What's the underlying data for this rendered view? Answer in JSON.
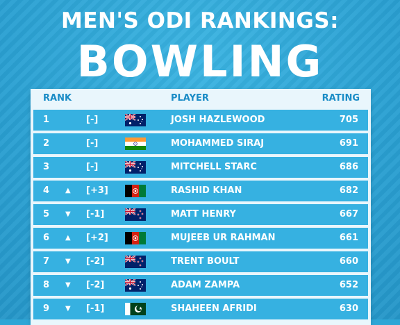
{
  "title": {
    "line1": "MEN'S ODI RANKINGS:",
    "line2": "BOWLING"
  },
  "table": {
    "columns": {
      "rank": "RANK",
      "player": "PLAYER",
      "rating": "RATING"
    },
    "rows": [
      {
        "rank": "1",
        "arrow": "",
        "movement": "[-]",
        "flag": "australia-flag-icon",
        "player": "JOSH HAZLEWOOD",
        "rating": "705"
      },
      {
        "rank": "2",
        "arrow": "",
        "movement": "[-]",
        "flag": "india-flag-icon",
        "player": "MOHAMMED SIRAJ",
        "rating": "691"
      },
      {
        "rank": "3",
        "arrow": "",
        "movement": "[-]",
        "flag": "australia-flag-icon",
        "player": "MITCHELL STARC",
        "rating": "686"
      },
      {
        "rank": "4",
        "arrow": "▲",
        "movement": "[+3]",
        "flag": "afghanistan-flag-icon",
        "player": "RASHID KHAN",
        "rating": "682"
      },
      {
        "rank": "5",
        "arrow": "▼",
        "movement": "[-1]",
        "flag": "new-zealand-flag-icon",
        "player": "MATT HENRY",
        "rating": "667"
      },
      {
        "rank": "6",
        "arrow": "▲",
        "movement": "[+2]",
        "flag": "afghanistan-flag-icon",
        "player": "MUJEEB UR RAHMAN",
        "rating": "661"
      },
      {
        "rank": "7",
        "arrow": "▼",
        "movement": "[-2]",
        "flag": "new-zealand-flag-icon",
        "player": "TRENT BOULT",
        "rating": "660"
      },
      {
        "rank": "8",
        "arrow": "▼",
        "movement": "[-2]",
        "flag": "australia-flag-icon",
        "player": "ADAM ZAMPA",
        "rating": "652"
      },
      {
        "rank": "9",
        "arrow": "▼",
        "movement": "[-1]",
        "flag": "pakistan-flag-icon",
        "player": "SHAHEEN AFRIDI",
        "rating": "630"
      }
    ]
  },
  "colors": {
    "background": "#2ea6d6",
    "card": "#e9f6fc",
    "row": "#36b1e1",
    "header_text": "#1a8cc6"
  }
}
